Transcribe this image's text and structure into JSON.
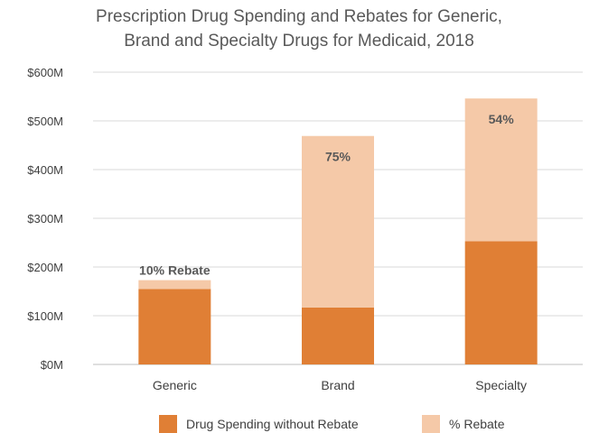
{
  "chart_data": {
    "type": "bar",
    "stacked": true,
    "title": [
      "Prescription Drug Spending and Rebates for Generic,",
      "Brand and Specialty Drugs for Medicaid, 2018"
    ],
    "categories": [
      "Generic",
      "Brand",
      "Specialty"
    ],
    "series": [
      {
        "name": "Drug Spending without Rebate",
        "color": "#e07f35",
        "values": [
          155,
          117,
          253
        ]
      },
      {
        "name": "% Rebate",
        "color": "#f5c9a8",
        "values": [
          18,
          352,
          293
        ]
      }
    ],
    "data_labels": [
      "10% Rebate",
      "75%",
      "54%"
    ],
    "y_ticks": [
      "$0M",
      "$100M",
      "$200M",
      "$300M",
      "$400M",
      "$500M",
      "$600M"
    ],
    "ylim": [
      0,
      600
    ],
    "grid": true,
    "legend_position": "bottom"
  }
}
